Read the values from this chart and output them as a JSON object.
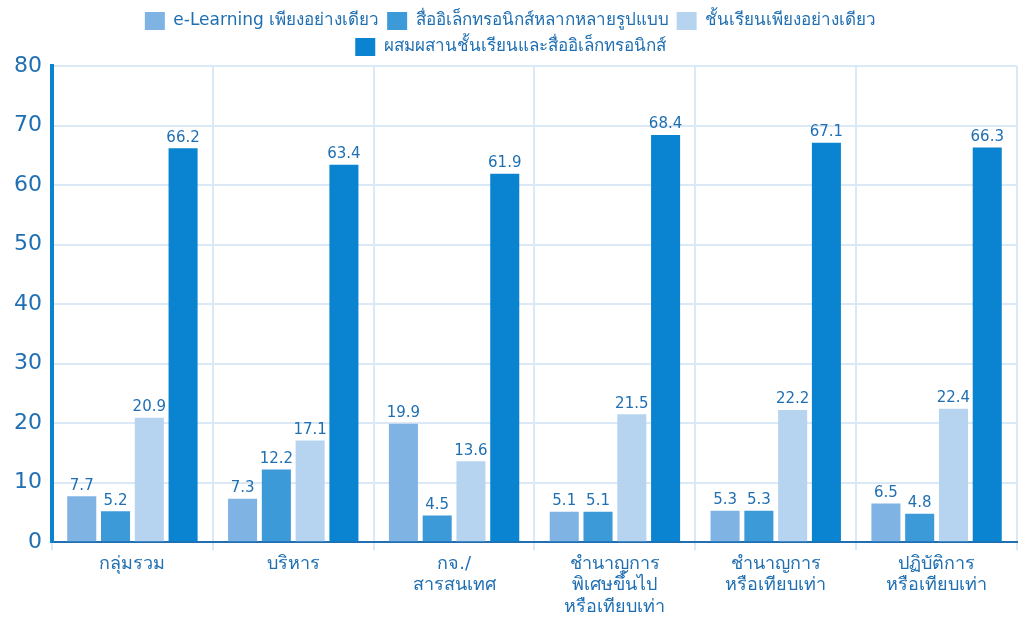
{
  "chart_data": {
    "type": "bar",
    "categories": [
      "กลุ่มรวม",
      "บริหาร",
      "กจ./\nสารสนเทศ",
      "ชำนาญการ\nพิเศษขึ้นไป\nหรือเทียบเท่า",
      "ชำนาญการ\nหรือเทียบเท่า",
      "ปฏิบัติการ\nหรือเทียบเท่า"
    ],
    "series": [
      {
        "name": "e-Learning เพียงอย่างเดียว",
        "color": "#7fb3e4",
        "values": [
          7.7,
          7.3,
          19.9,
          5.1,
          5.3,
          6.5
        ]
      },
      {
        "name": "สื่ออิเล็กทรอนิกส์หลากหลายรูปแบบ",
        "color": "#3d9ad8",
        "values": [
          5.2,
          12.2,
          4.5,
          5.1,
          5.3,
          4.8
        ]
      },
      {
        "name": "ชั้นเรียนเพียงอย่างเดียว",
        "color": "#b6d4f0",
        "values": [
          20.9,
          17.1,
          13.6,
          21.5,
          22.2,
          22.4
        ]
      },
      {
        "name": "ผสมผสานชั้นเรียนและสื่ออิเล็กทรอนิกส์",
        "color": "#0a84d0",
        "values": [
          66.2,
          63.4,
          61.9,
          68.4,
          67.1,
          66.3
        ]
      }
    ],
    "ylim": [
      0,
      80
    ],
    "yticks": [
      0,
      10,
      20,
      30,
      40,
      50,
      60,
      70,
      80
    ],
    "grid": true,
    "legend": "top",
    "data_labels": true
  }
}
